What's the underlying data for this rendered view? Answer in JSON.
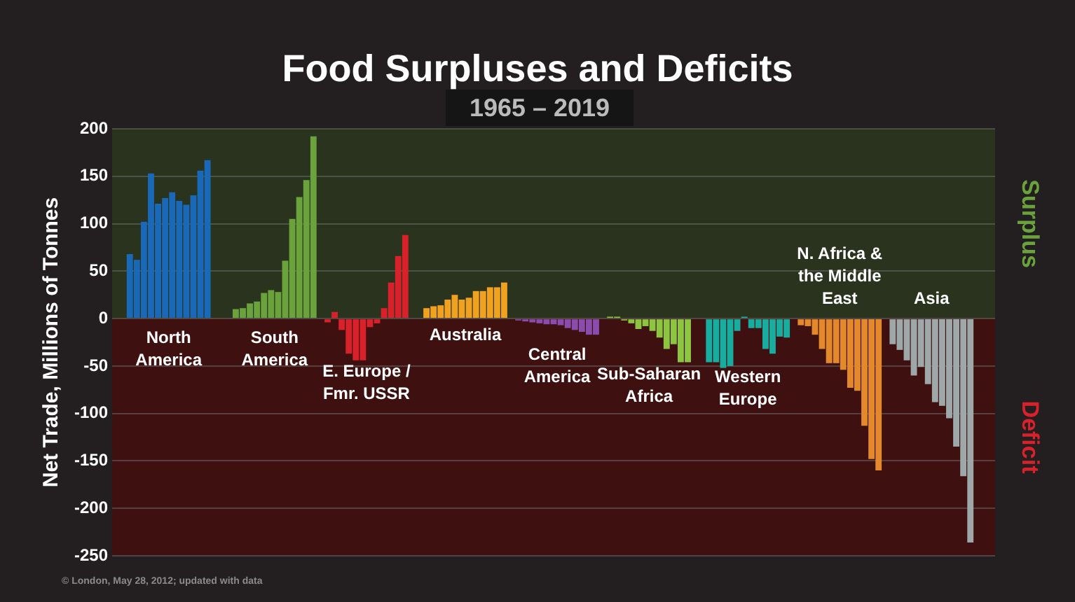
{
  "chart_data": {
    "type": "bar",
    "title": "Food Surpluses and Deficits",
    "subtitle": "1965 – 2019",
    "ylabel": "Net Trade, Millions of Tonnes",
    "categories": [
      null,
      null,
      null,
      null,
      null,
      null,
      null,
      null,
      null,
      null,
      null,
      null,
      null,
      null,
      null,
      null,
      null,
      null,
      null,
      null,
      null,
      null,
      null,
      null,
      null,
      null,
      null,
      null,
      null,
      null,
      null,
      null,
      null,
      null,
      null,
      null,
      null,
      null,
      null,
      null,
      null,
      null,
      null,
      null,
      null,
      null,
      null,
      null,
      null,
      null,
      null,
      null,
      null,
      null,
      null,
      null,
      null,
      null,
      null,
      null,
      null,
      null,
      null,
      null,
      null,
      null,
      null,
      null,
      null,
      null,
      null,
      null,
      null,
      null,
      null,
      null,
      null,
      null,
      null,
      null,
      null,
      null,
      null,
      null,
      null,
      null,
      null,
      null,
      null,
      null,
      null,
      null,
      null,
      null,
      null,
      null,
      null,
      null,
      null,
      null,
      null,
      null,
      null,
      null,
      null,
      null,
      null,
      null,
      null,
      null,
      null,
      null,
      null,
      null,
      null,
      null,
      null,
      null,
      null,
      null,
      null,
      null,
      null,
      null,
      null
    ],
    "series": [
      {
        "name": "North America",
        "color": "#1a68b8",
        "values": [
          null,
          null,
          68,
          62,
          102,
          153,
          121,
          127,
          133,
          124,
          120,
          130,
          156,
          167,
          null,
          null,
          null,
          null,
          null,
          null,
          null,
          null,
          null,
          null,
          null,
          null,
          null,
          null,
          null,
          null,
          null,
          null,
          null,
          null,
          null,
          null,
          null,
          null,
          null,
          null,
          null,
          null,
          null,
          null,
          null,
          null,
          null,
          null,
          null,
          null,
          null,
          null,
          null,
          null,
          null,
          null,
          null,
          null,
          null,
          null,
          null,
          null,
          null,
          null,
          null,
          null,
          null,
          null,
          null,
          null,
          null,
          null,
          null,
          null,
          null,
          null,
          null,
          null,
          null,
          null,
          null,
          null,
          null,
          null,
          null,
          null,
          null,
          null,
          null,
          null,
          null,
          null,
          null,
          null,
          null,
          null,
          null,
          null,
          null,
          null,
          null,
          null,
          null,
          null,
          null,
          null,
          null,
          null,
          null,
          null,
          null,
          null,
          null,
          null,
          null,
          null,
          null,
          null,
          null,
          null,
          null,
          null,
          null,
          null,
          null
        ]
      },
      {
        "name": "South America",
        "color": "#6aa23c",
        "values": [
          null,
          null,
          null,
          null,
          null,
          null,
          null,
          null,
          null,
          null,
          null,
          null,
          null,
          null,
          null,
          null,
          null,
          10,
          11,
          16,
          18,
          27,
          30,
          28,
          61,
          105,
          128,
          146,
          192,
          null,
          null,
          null,
          null,
          null,
          null,
          null,
          null,
          null,
          null,
          null,
          null,
          null,
          null,
          null,
          null,
          null,
          null,
          null,
          null,
          null,
          null,
          null,
          null,
          null,
          null,
          null,
          null,
          null,
          null,
          null,
          null,
          null,
          null,
          null,
          null,
          null,
          null,
          null,
          null,
          null,
          null,
          null,
          null,
          null,
          null,
          null,
          null,
          null,
          null,
          null,
          null,
          null,
          null,
          null,
          null,
          null,
          null,
          null,
          null,
          null,
          null,
          null,
          null,
          null,
          null,
          null,
          null,
          null,
          null,
          null,
          null,
          null,
          null,
          null,
          null,
          null,
          null,
          null,
          null,
          null,
          null,
          null,
          null,
          null,
          null,
          null,
          null,
          null,
          null,
          null,
          null,
          null,
          null,
          null,
          null
        ]
      },
      {
        "name": "E. Europe / Fmr. USSR",
        "color": "#d8222b",
        "values": [
          null,
          null,
          null,
          null,
          null,
          null,
          null,
          null,
          null,
          null,
          null,
          null,
          null,
          null,
          null,
          null,
          null,
          null,
          null,
          null,
          null,
          null,
          null,
          null,
          null,
          null,
          null,
          null,
          null,
          null,
          -4,
          7,
          -12,
          -37,
          -44,
          -44,
          -9,
          -5,
          11,
          38,
          66,
          88,
          null,
          null,
          null,
          null,
          null,
          null,
          null,
          null,
          null,
          null,
          null,
          null,
          null,
          null,
          null,
          null,
          null,
          null,
          null,
          null,
          null,
          null,
          null,
          null,
          null,
          null,
          null,
          null,
          null,
          null,
          null,
          null,
          null,
          null,
          null,
          null,
          null,
          null,
          null,
          null,
          null,
          null,
          null,
          null,
          null,
          null,
          null,
          null,
          null,
          null,
          null,
          null,
          null,
          null,
          null,
          null,
          null,
          null,
          null,
          null,
          null,
          null,
          null,
          null,
          null,
          null,
          null,
          null,
          null,
          null,
          null,
          null,
          null,
          null,
          null,
          null,
          null,
          null,
          null,
          null,
          null,
          null,
          null
        ]
      },
      {
        "name": "Australia",
        "color": "#f0a21e",
        "values": [
          null,
          null,
          null,
          null,
          null,
          null,
          null,
          null,
          null,
          null,
          null,
          null,
          null,
          null,
          null,
          null,
          null,
          null,
          null,
          null,
          null,
          null,
          null,
          null,
          null,
          null,
          null,
          null,
          null,
          null,
          null,
          null,
          null,
          null,
          null,
          null,
          null,
          null,
          null,
          null,
          null,
          null,
          null,
          null,
          11,
          13,
          14,
          20,
          25,
          20,
          22,
          29,
          29,
          33,
          33,
          38,
          null,
          null,
          null,
          null,
          null,
          null,
          null,
          null,
          null,
          null,
          null,
          null,
          null,
          null,
          null,
          null,
          null,
          null,
          null,
          null,
          null,
          null,
          null,
          null,
          null,
          null,
          null,
          null,
          null,
          null,
          null,
          null,
          null,
          null,
          null,
          null,
          null,
          null,
          null,
          null,
          null,
          null,
          null,
          null,
          null,
          null,
          null,
          null,
          null,
          null,
          null,
          null,
          null,
          null,
          null,
          null,
          null,
          null,
          null,
          null,
          null,
          null,
          null,
          null,
          null,
          null,
          null,
          null,
          null
        ]
      },
      {
        "name": "Central America",
        "color": "#8a4cad",
        "values": [
          null,
          null,
          null,
          null,
          null,
          null,
          null,
          null,
          null,
          null,
          null,
          null,
          null,
          null,
          null,
          null,
          null,
          null,
          null,
          null,
          null,
          null,
          null,
          null,
          null,
          null,
          null,
          null,
          null,
          null,
          null,
          null,
          null,
          null,
          null,
          null,
          null,
          null,
          null,
          null,
          null,
          null,
          null,
          null,
          null,
          null,
          null,
          null,
          null,
          null,
          null,
          null,
          null,
          null,
          null,
          null,
          null,
          -2,
          -3,
          -4,
          -5,
          -6,
          -6,
          -7,
          -10,
          -12,
          -14,
          -17,
          -17,
          null,
          null,
          null,
          null,
          null,
          null,
          null,
          null,
          null,
          null,
          null,
          null,
          null,
          null,
          null,
          null,
          null,
          null,
          null,
          null,
          null,
          null,
          null,
          null,
          null,
          null,
          null,
          null,
          null,
          null,
          null,
          null,
          null,
          null,
          null,
          null,
          null,
          null,
          null,
          null,
          null,
          null,
          null,
          null,
          null,
          null,
          null,
          null,
          null,
          null,
          null,
          null,
          null,
          null,
          null,
          null
        ]
      },
      {
        "name": "Sub-Saharan Africa",
        "color": "#8cc540",
        "values": [
          null,
          null,
          null,
          null,
          null,
          null,
          null,
          null,
          null,
          null,
          null,
          null,
          null,
          null,
          null,
          null,
          null,
          null,
          null,
          null,
          null,
          null,
          null,
          null,
          null,
          null,
          null,
          null,
          null,
          null,
          null,
          null,
          null,
          null,
          null,
          null,
          null,
          null,
          null,
          null,
          null,
          null,
          null,
          null,
          null,
          null,
          null,
          null,
          null,
          null,
          null,
          null,
          null,
          null,
          null,
          null,
          null,
          null,
          null,
          null,
          null,
          null,
          null,
          null,
          null,
          null,
          null,
          null,
          null,
          null,
          2,
          2,
          -2,
          -5,
          -11,
          -8,
          -13,
          -20,
          -32,
          -27,
          -46,
          -46,
          null,
          null,
          null,
          null,
          null,
          null,
          null,
          null,
          null,
          null,
          null,
          null,
          null,
          null,
          null,
          null,
          null,
          null,
          null,
          null,
          null,
          null,
          null,
          null,
          null,
          null,
          null,
          null,
          null,
          null,
          null,
          null,
          null,
          null,
          null,
          null,
          null,
          null,
          null,
          null,
          null,
          null,
          null
        ]
      },
      {
        "name": "Western Europe",
        "color": "#19ada0",
        "values": [
          null,
          null,
          null,
          null,
          null,
          null,
          null,
          null,
          null,
          null,
          null,
          null,
          null,
          null,
          null,
          null,
          null,
          null,
          null,
          null,
          null,
          null,
          null,
          null,
          null,
          null,
          null,
          null,
          null,
          null,
          null,
          null,
          null,
          null,
          null,
          null,
          null,
          null,
          null,
          null,
          null,
          null,
          null,
          null,
          null,
          null,
          null,
          null,
          null,
          null,
          null,
          null,
          null,
          null,
          null,
          null,
          null,
          null,
          null,
          null,
          null,
          null,
          null,
          null,
          null,
          null,
          null,
          null,
          null,
          null,
          null,
          null,
          null,
          null,
          null,
          null,
          null,
          null,
          null,
          null,
          null,
          null,
          null,
          null,
          -46,
          -46,
          -52,
          -50,
          -13,
          2,
          -10,
          -10,
          -32,
          -37,
          -19,
          -20,
          null,
          null,
          null,
          null,
          null,
          null,
          null,
          null,
          null,
          null,
          null,
          null,
          null,
          null,
          null,
          null,
          null,
          null,
          null,
          null,
          null,
          null,
          null,
          null,
          null,
          null,
          null,
          null,
          null
        ]
      },
      {
        "name": "N. Africa & the Middle East",
        "color": "#e3892b",
        "values": [
          null,
          null,
          null,
          null,
          null,
          null,
          null,
          null,
          null,
          null,
          null,
          null,
          null,
          null,
          null,
          null,
          null,
          null,
          null,
          null,
          null,
          null,
          null,
          null,
          null,
          null,
          null,
          null,
          null,
          null,
          null,
          null,
          null,
          null,
          null,
          null,
          null,
          null,
          null,
          null,
          null,
          null,
          null,
          null,
          null,
          null,
          null,
          null,
          null,
          null,
          null,
          null,
          null,
          null,
          null,
          null,
          null,
          null,
          null,
          null,
          null,
          null,
          null,
          null,
          null,
          null,
          null,
          null,
          null,
          null,
          null,
          null,
          null,
          null,
          null,
          null,
          null,
          null,
          null,
          null,
          null,
          null,
          null,
          null,
          null,
          null,
          null,
          null,
          null,
          null,
          null,
          null,
          null,
          null,
          null,
          null,
          null,
          -7,
          -8,
          -17,
          -32,
          -47,
          -47,
          -54,
          -73,
          -76,
          -113,
          -148,
          -160,
          null,
          null,
          null,
          null,
          null,
          null,
          null,
          null,
          null,
          null,
          null,
          null,
          null,
          null,
          null,
          null
        ]
      },
      {
        "name": "Asia",
        "color": "#9ea8a8",
        "values": [
          null,
          null,
          null,
          null,
          null,
          null,
          null,
          null,
          null,
          null,
          null,
          null,
          null,
          null,
          null,
          null,
          null,
          null,
          null,
          null,
          null,
          null,
          null,
          null,
          null,
          null,
          null,
          null,
          null,
          null,
          null,
          null,
          null,
          null,
          null,
          null,
          null,
          null,
          null,
          null,
          null,
          null,
          null,
          null,
          null,
          null,
          null,
          null,
          null,
          null,
          null,
          null,
          null,
          null,
          null,
          null,
          null,
          null,
          null,
          null,
          null,
          null,
          null,
          null,
          null,
          null,
          null,
          null,
          null,
          null,
          null,
          null,
          null,
          null,
          null,
          null,
          null,
          null,
          null,
          null,
          null,
          null,
          null,
          null,
          null,
          null,
          null,
          null,
          null,
          null,
          null,
          null,
          null,
          null,
          null,
          null,
          null,
          null,
          null,
          null,
          null,
          null,
          null,
          null,
          null,
          null,
          null,
          null,
          null,
          null,
          -27,
          -33,
          -44,
          -60,
          -51,
          -69,
          -88,
          -92,
          -105,
          -135,
          -166,
          -236,
          null,
          null,
          null
        ]
      }
    ],
    "ylim": [
      -250,
      200
    ],
    "yticks": [
      -250,
      -200,
      -150,
      -100,
      -50,
      0,
      50,
      100,
      150,
      200
    ],
    "grid": "y",
    "bands": [
      {
        "axis": "y",
        "from": 0,
        "to": 200,
        "label": "Surplus",
        "color": "#2a331e"
      },
      {
        "axis": "y",
        "from": -250,
        "to": 0,
        "label": "Deficit",
        "color": "#3e1010"
      }
    ],
    "annotations": [
      "© London, May 28, 2012; updated with data"
    ]
  }
}
